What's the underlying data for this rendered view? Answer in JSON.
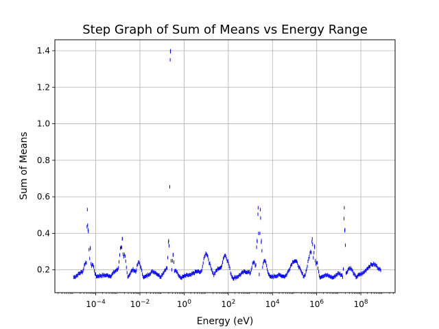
{
  "chart_data": {
    "type": "scatter",
    "title": "Step Graph of Sum of Means vs Energy Range",
    "xlabel": "Energy (eV)",
    "ylabel": "Sum of Means",
    "x_scale": "log",
    "xlim_log10": [
      -5.85,
      9.55
    ],
    "ylim": [
      0.075,
      1.46
    ],
    "x_ticks": [
      {
        "exp": -4,
        "label": "10",
        "sup": "−4"
      },
      {
        "exp": -2,
        "label": "10",
        "sup": "−2"
      },
      {
        "exp": 0,
        "label": "10",
        "sup": "0"
      },
      {
        "exp": 2,
        "label": "10",
        "sup": "2"
      },
      {
        "exp": 4,
        "label": "10",
        "sup": "4"
      },
      {
        "exp": 6,
        "label": "10",
        "sup": "6"
      },
      {
        "exp": 8,
        "label": "10",
        "sup": "8"
      }
    ],
    "y_ticks": [
      {
        "v": 0.2,
        "label": "0.2"
      },
      {
        "v": 0.4,
        "label": "0.4"
      },
      {
        "v": 0.6,
        "label": "0.6"
      },
      {
        "v": 0.8,
        "label": "0.8"
      },
      {
        "v": 1.0,
        "label": "1.0"
      },
      {
        "v": 1.2,
        "label": "1.2"
      },
      {
        "v": 1.4,
        "label": "1.4"
      }
    ],
    "grid": true,
    "series_color": "#0000ff",
    "baseline_value": 0.152,
    "baseline_exp_range": [
      -5.0,
      8.9
    ],
    "peaks": [
      {
        "exp": -4.55,
        "y": 0.19,
        "w": 0.35
      },
      {
        "exp": -4.45,
        "y": 0.24,
        "w": 0.15
      },
      {
        "exp": -4.38,
        "y": 0.53,
        "w": 0.03
      },
      {
        "exp": -4.35,
        "y": 0.42,
        "w": 0.06
      },
      {
        "exp": -4.25,
        "y": 0.32,
        "w": 0.04
      },
      {
        "exp": -4.15,
        "y": 0.23,
        "w": 0.12
      },
      {
        "exp": -3.6,
        "y": 0.17,
        "w": 0.6
      },
      {
        "exp": -3.0,
        "y": 0.2,
        "w": 0.3
      },
      {
        "exp": -2.85,
        "y": 0.33,
        "w": 0.12
      },
      {
        "exp": -2.8,
        "y": 0.37,
        "w": 0.05
      },
      {
        "exp": -2.7,
        "y": 0.28,
        "w": 0.1
      },
      {
        "exp": -2.3,
        "y": 0.2,
        "w": 0.2
      },
      {
        "exp": -2.05,
        "y": 0.24,
        "w": 0.15
      },
      {
        "exp": -1.4,
        "y": 0.19,
        "w": 0.3
      },
      {
        "exp": -0.75,
        "y": 0.21,
        "w": 0.25
      },
      {
        "exp": -0.7,
        "y": 0.36,
        "w": 0.05
      },
      {
        "exp": -0.62,
        "y": 1.4,
        "w": 0.02
      },
      {
        "exp": -0.63,
        "y": 1.35,
        "w": 0.02
      },
      {
        "exp": -0.5,
        "y": 0.28,
        "w": 0.06
      },
      {
        "exp": -0.4,
        "y": 0.2,
        "w": 0.15
      },
      {
        "exp": 0.2,
        "y": 0.17,
        "w": 0.3
      },
      {
        "exp": 0.6,
        "y": 0.19,
        "w": 0.35
      },
      {
        "exp": 1.0,
        "y": 0.29,
        "w": 0.2
      },
      {
        "exp": 1.1,
        "y": 0.24,
        "w": 0.2
      },
      {
        "exp": 1.6,
        "y": 0.21,
        "w": 0.25
      },
      {
        "exp": 1.85,
        "y": 0.28,
        "w": 0.2
      },
      {
        "exp": 1.95,
        "y": 0.25,
        "w": 0.15
      },
      {
        "exp": 2.8,
        "y": 0.19,
        "w": 0.35
      },
      {
        "exp": 3.15,
        "y": 0.24,
        "w": 0.15
      },
      {
        "exp": 3.3,
        "y": 0.36,
        "w": 0.05
      },
      {
        "exp": 3.35,
        "y": 0.54,
        "w": 0.03
      },
      {
        "exp": 3.45,
        "y": 0.53,
        "w": 0.03
      },
      {
        "exp": 3.5,
        "y": 0.36,
        "w": 0.04
      },
      {
        "exp": 3.65,
        "y": 0.25,
        "w": 0.15
      },
      {
        "exp": 4.3,
        "y": 0.17,
        "w": 0.4
      },
      {
        "exp": 5.0,
        "y": 0.25,
        "w": 0.3
      },
      {
        "exp": 5.75,
        "y": 0.3,
        "w": 0.2
      },
      {
        "exp": 5.8,
        "y": 0.37,
        "w": 0.05
      },
      {
        "exp": 5.9,
        "y": 0.33,
        "w": 0.05
      },
      {
        "exp": 6.0,
        "y": 0.24,
        "w": 0.1
      },
      {
        "exp": 6.4,
        "y": 0.17,
        "w": 0.3
      },
      {
        "exp": 7.0,
        "y": 0.18,
        "w": 0.2
      },
      {
        "exp": 7.25,
        "y": 0.54,
        "w": 0.03
      },
      {
        "exp": 7.28,
        "y": 0.42,
        "w": 0.03
      },
      {
        "exp": 7.5,
        "y": 0.21,
        "w": 0.2
      },
      {
        "exp": 8.1,
        "y": 0.18,
        "w": 0.3
      },
      {
        "exp": 8.55,
        "y": 0.23,
        "w": 0.45
      }
    ]
  }
}
